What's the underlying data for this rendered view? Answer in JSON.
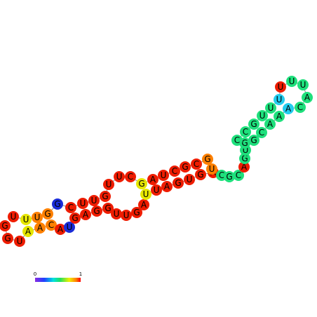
{
  "nodes": [
    {
      "label": "G",
      "color": "#ee1c00"
    },
    {
      "label": "G",
      "color": "#ee1c00"
    },
    {
      "label": "U",
      "color": "#ee1c00"
    },
    {
      "label": "A",
      "color": "#e6e600"
    },
    {
      "label": "A",
      "color": "#ff8000"
    },
    {
      "label": "C",
      "color": "#ff8000"
    },
    {
      "label": "A",
      "color": "#ee1c00"
    },
    {
      "label": "U",
      "color": "#1a2cd8"
    },
    {
      "label": "G",
      "color": "#ee1c00"
    },
    {
      "label": "A",
      "color": "#ee1c00"
    },
    {
      "label": "G",
      "color": "#ee1c00"
    },
    {
      "label": "G",
      "color": "#ee1c00"
    },
    {
      "label": "U",
      "color": "#ee1c00"
    },
    {
      "label": "U",
      "color": "#ee1c00"
    },
    {
      "label": "G",
      "color": "#ee1c00"
    },
    {
      "label": "A",
      "color": "#ee1c00"
    },
    {
      "label": "U",
      "color": "#e6e600"
    },
    {
      "label": "U",
      "color": "#ee1c00"
    },
    {
      "label": "A",
      "color": "#ee1c00"
    },
    {
      "label": "G",
      "color": "#ee1c00"
    },
    {
      "label": "U",
      "color": "#ee1c00"
    },
    {
      "label": "G",
      "color": "#ee1c00"
    },
    {
      "label": "A",
      "color": "#ee1c00"
    },
    {
      "label": "C",
      "color": "#1ee07c"
    },
    {
      "label": "G",
      "color": "#1ee07c"
    },
    {
      "label": "C",
      "color": "#1ee07c"
    },
    {
      "label": "A",
      "color": "#ee1c00"
    },
    {
      "label": "G",
      "color": "#1ee07c"
    },
    {
      "label": "U",
      "color": "#1ee07c"
    },
    {
      "label": "G",
      "color": "#1ee07c"
    },
    {
      "label": "C",
      "color": "#1ee07c"
    },
    {
      "label": "C",
      "color": "#1ee07c"
    },
    {
      "label": "G",
      "color": "#1ee07c"
    },
    {
      "label": "U",
      "color": "#1ee07c"
    },
    {
      "label": "U",
      "color": "#1ee07c"
    },
    {
      "label": "U",
      "color": "#22ccee"
    },
    {
      "label": "U",
      "color": "#ee1c00"
    },
    {
      "label": "U",
      "color": "#1ee07c"
    },
    {
      "label": "U",
      "color": "#1ee07c"
    },
    {
      "label": "A",
      "color": "#1ee07c"
    },
    {
      "label": "C",
      "color": "#1ee07c"
    },
    {
      "label": "A",
      "color": "#22ccee"
    },
    {
      "label": "A",
      "color": "#1ee07c"
    },
    {
      "label": "A",
      "color": "#1ee07c"
    },
    {
      "label": "C",
      "color": "#1ee07c"
    },
    {
      "label": "G",
      "color": "#1ee07c"
    },
    {
      "label": "U",
      "color": "#ff8000"
    },
    {
      "label": "G",
      "color": "#ff8000"
    },
    {
      "label": "C",
      "color": "#ee1c00"
    },
    {
      "label": "G",
      "color": "#ee1c00"
    },
    {
      "label": "C",
      "color": "#ee1c00"
    },
    {
      "label": "U",
      "color": "#ee1c00"
    },
    {
      "label": "A",
      "color": "#ee1c00"
    },
    {
      "label": "G",
      "color": "#e6e600"
    },
    {
      "label": "C",
      "color": "#ee1c00"
    },
    {
      "label": "U",
      "color": "#ee1c00"
    },
    {
      "label": "U",
      "color": "#ee1c00"
    },
    {
      "label": "G",
      "color": "#ee1c00"
    },
    {
      "label": "U",
      "color": "#ee1c00"
    },
    {
      "label": "U",
      "color": "#ee1c00"
    },
    {
      "label": "C",
      "color": "#ee1c00"
    },
    {
      "label": "G",
      "color": "#1a2cd8"
    },
    {
      "label": "G",
      "color": "#ff8000"
    },
    {
      "label": "U",
      "color": "#ff8000"
    },
    {
      "label": "U",
      "color": "#e6e600"
    },
    {
      "label": "U",
      "color": "#ee1c00"
    }
  ],
  "colorbar": {
    "range": [
      0,
      1
    ]
  }
}
